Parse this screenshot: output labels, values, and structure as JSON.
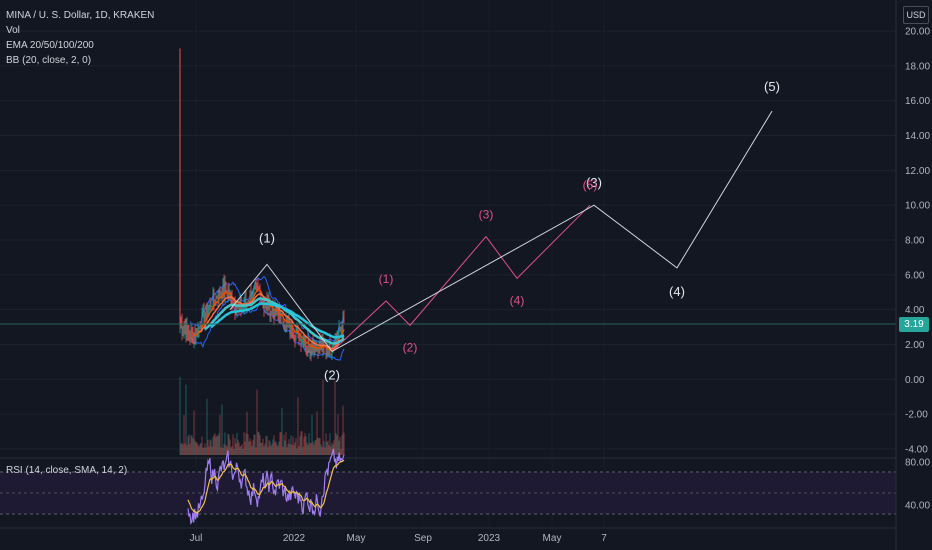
{
  "legend": {
    "symbol": "MINA / U. S. Dollar, 1D, KRAKEN",
    "vol": "Vol",
    "ema": "EMA 20/50/100/200",
    "bb": "BB (20, close, 2, 0)"
  },
  "rsi_legend": "RSI (14, close, SMA, 14, 2)",
  "currency": "USD",
  "last_price": "3.19",
  "colors": {
    "background": "#131722",
    "projection_primary": "#d1d4dc",
    "projection_secondary": "#e0508a",
    "price_tag": "#26a69a",
    "rsi": "#b39ddb",
    "rsi_ma": "#f0c04a"
  },
  "chart_data": {
    "type": "line",
    "y_axis": {
      "ticks": [
        "20.00",
        "18.00",
        "16.00",
        "14.00",
        "12.00",
        "10.00",
        "8.00",
        "6.00",
        "4.00",
        "2.00",
        "0.00",
        "-2.00",
        "-4.00"
      ],
      "ylim": [
        -4,
        20
      ]
    },
    "x_axis": {
      "ticks": [
        "Jul",
        "2022",
        "May",
        "Sep",
        "2023",
        "May",
        "7"
      ]
    },
    "rsi_axis": {
      "ticks": [
        "80.00",
        "40.00"
      ]
    },
    "primary_waves": [
      {
        "label": "(1)",
        "value": 6.6
      },
      {
        "label": "(2)",
        "value": 1.6
      },
      {
        "label": "(3)",
        "value": 10.0
      },
      {
        "label": "(4)",
        "value": 6.4
      },
      {
        "label": "(5)",
        "value": 15.4
      }
    ],
    "secondary_waves": [
      {
        "label": "(1)",
        "value": 4.5
      },
      {
        "label": "(2)",
        "value": 3.1
      },
      {
        "label": "(3)",
        "value": 8.2
      },
      {
        "label": "(4)",
        "value": 5.8
      },
      {
        "label": "(5)",
        "value": 10.0
      }
    ]
  }
}
